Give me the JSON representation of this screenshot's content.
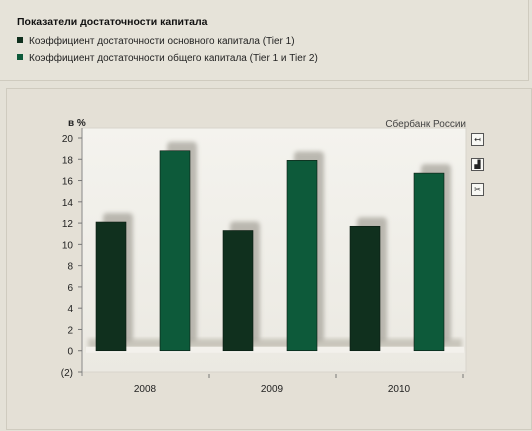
{
  "legend": {
    "title": "Показатели достаточности капитала",
    "items": [
      {
        "label": "Коэффициент достаточности основного капитала (Tier 1)",
        "color": "#10301e"
      },
      {
        "label": "Коэффициент достаточности общего капитала (Tier 1 и Tier 2)",
        "color": "#0d5a3a"
      }
    ]
  },
  "toolbar": {
    "icons": [
      "expand-icon",
      "bar-chart-icon",
      "scissors-icon"
    ]
  },
  "chart_data": {
    "type": "bar",
    "title": "Сбербанк России",
    "ylabel": "в %",
    "categories": [
      "2008",
      "2009",
      "2010"
    ],
    "series": [
      {
        "name": "Коэффициент достаточности основного капитала (Tier 1)",
        "color": "#10301e",
        "values": [
          12.1,
          11.3,
          11.7
        ]
      },
      {
        "name": "Коэффициент достаточности общего капитала (Tier 1 и Tier 2)",
        "color": "#0d5a3a",
        "values": [
          18.8,
          17.9,
          16.7
        ]
      }
    ],
    "ylim": [
      -2,
      20
    ],
    "yticks": [
      "(2)",
      "0",
      "2",
      "4",
      "6",
      "8",
      "10",
      "12",
      "14",
      "16",
      "18",
      "20"
    ],
    "grid": false
  }
}
